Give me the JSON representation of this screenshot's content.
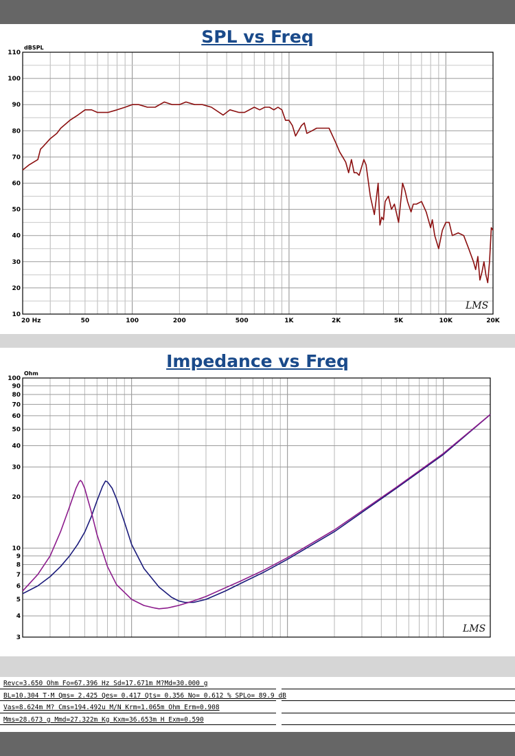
{
  "chart_data": [
    {
      "type": "line",
      "title": "SPL vs Freq",
      "ylabel": "dBSPL",
      "xscale": "log",
      "xlim": [
        20,
        20000
      ],
      "ylim": [
        10,
        110
      ],
      "xticklabels": [
        "20 Hz",
        "50",
        "100",
        "200",
        "500",
        "1K",
        "2K",
        "5K",
        "10K",
        "20K"
      ],
      "xtickvalues": [
        20,
        50,
        100,
        200,
        500,
        1000,
        2000,
        5000,
        10000,
        20000
      ],
      "yticks": [
        10,
        20,
        30,
        40,
        50,
        60,
        70,
        80,
        90,
        100,
        110
      ],
      "grid": true,
      "watermark": "LMS",
      "series": [
        {
          "color": "#8b0f0f",
          "x": [
            20,
            22,
            25,
            26,
            27,
            30,
            33,
            35,
            40,
            45,
            50,
            55,
            60,
            70,
            80,
            90,
            100,
            110,
            125,
            140,
            160,
            180,
            200,
            220,
            250,
            280,
            320,
            380,
            420,
            480,
            520,
            600,
            650,
            700,
            750,
            800,
            850,
            900,
            950,
            1000,
            1050,
            1100,
            1200,
            1250,
            1300,
            1400,
            1500,
            1600,
            1800,
            2000,
            2100,
            2200,
            2300,
            2400,
            2500,
            2600,
            2700,
            2800,
            3000,
            3100,
            3300,
            3500,
            3700,
            3800,
            3900,
            4000,
            4100,
            4300,
            4500,
            4700,
            5000,
            5300,
            5500,
            5700,
            6000,
            6200,
            6500,
            7000,
            7500,
            8000,
            8200,
            8500,
            9000,
            9500,
            10000,
            10500,
            11000,
            12000,
            13000,
            14000,
            15000,
            15500,
            16000,
            16500,
            17000,
            17500,
            18000,
            18500,
            19000,
            19500,
            20000
          ],
          "y": [
            65,
            67,
            69,
            73,
            74,
            77,
            79,
            81,
            84,
            86,
            88,
            88,
            87,
            87,
            88,
            89,
            90,
            90,
            89,
            89,
            91,
            90,
            90,
            91,
            90,
            90,
            89,
            86,
            88,
            87,
            87,
            89,
            88,
            89,
            89,
            88,
            89,
            88,
            84,
            84,
            82,
            78,
            82,
            83,
            79,
            80,
            81,
            81,
            81,
            75,
            72,
            70,
            68,
            64,
            69,
            64,
            64,
            63,
            69,
            67,
            55,
            48,
            60,
            44,
            47,
            46,
            53,
            55,
            50,
            52,
            45,
            60,
            57,
            53,
            49,
            52,
            52,
            53,
            49,
            43,
            46,
            40,
            35,
            42,
            45,
            45,
            40,
            41,
            40,
            35,
            30,
            27,
            32,
            23,
            26,
            30,
            25,
            22,
            30,
            43,
            42
          ]
        }
      ]
    },
    {
      "type": "line",
      "title": "Impedance vs Freq",
      "ylabel": "Ohm",
      "xscale": "log",
      "yscale": "log",
      "xlim": [
        20,
        20000
      ],
      "ylim": [
        3,
        100
      ],
      "xticklabels": [
        "20 Hz",
        "50",
        "100",
        "200",
        "500",
        "1K",
        "2K",
        "5K",
        "10K",
        "20K"
      ],
      "xtickvalues": [
        20,
        50,
        100,
        200,
        500,
        1000,
        2000,
        5000,
        10000,
        20000
      ],
      "yticks": [
        3,
        4,
        5,
        6,
        7,
        8,
        9,
        10,
        20,
        30,
        40,
        50,
        60,
        70,
        80,
        90,
        100
      ],
      "grid": true,
      "watermark": "LMS",
      "series": [
        {
          "color": "#1a1a7a",
          "x": [
            20,
            25,
            30,
            35,
            40,
            45,
            50,
            55,
            60,
            65,
            68,
            70,
            75,
            80,
            90,
            100,
            120,
            150,
            180,
            200,
            220,
            250,
            300,
            400,
            500,
            700,
            1000,
            2000,
            5000,
            10000,
            20000
          ],
          "y": [
            5.4,
            6.0,
            6.8,
            7.8,
            9.0,
            10.5,
            12.4,
            15.2,
            19.0,
            23.0,
            24.8,
            24.5,
            22.5,
            19.5,
            14.2,
            10.5,
            7.6,
            5.9,
            5.15,
            4.9,
            4.8,
            4.8,
            5.0,
            5.6,
            6.2,
            7.2,
            8.6,
            12.5,
            22.5,
            35.5,
            61.0
          ]
        },
        {
          "color": "#8b1a8b",
          "x": [
            20,
            25,
            30,
            35,
            40,
            44,
            46,
            47,
            48,
            50,
            55,
            60,
            70,
            80,
            100,
            120,
            140,
            150,
            170,
            200,
            250,
            300,
            400,
            500,
            700,
            1000,
            2000,
            5000,
            10000,
            20000
          ],
          "y": [
            5.6,
            7.0,
            9.0,
            12.5,
            17.5,
            22.5,
            24.5,
            25.0,
            24.5,
            22.5,
            16.5,
            12.0,
            7.8,
            6.1,
            5.0,
            4.6,
            4.45,
            4.4,
            4.45,
            4.6,
            4.9,
            5.2,
            5.85,
            6.4,
            7.4,
            8.8,
            12.8,
            22.8,
            36.0,
            61.0
          ]
        }
      ]
    }
  ],
  "parameters": [
    "Revc=3.650 Ohm  Fo=67.396 Hz  Sd=17.671m M?Md=30.000 g",
    "BL=10.304 T·M  Qms= 2.425  Qes= 0.417  Qts= 0.356  No= 0.612 %  SPLo= 89.9 dB",
    "Vas=8.624m M? Cms=194.492u M/N  Krm=1.065m Ohm  Erm=0.908",
    "Mms=28.673 g  Mmd=27.322m Kg  Kxm=36.653m H  Exm=0.590"
  ]
}
